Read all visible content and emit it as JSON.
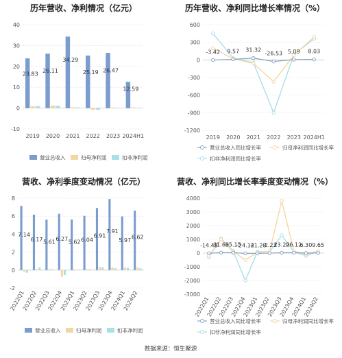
{
  "source": "数据来源：恒生聚源",
  "colors": {
    "revenue": "#7b9ccf",
    "parent_profit": "#f3d7a3",
    "deducted_profit": "#a9e0e6",
    "grid": "#dddddd",
    "axis": "#cccccc"
  },
  "chart_data": [
    {
      "type": "bar",
      "title": "历年营收、净利情况（亿元）",
      "categories": [
        "2019",
        "2020",
        "2021",
        "2022",
        "2023",
        "2024H1"
      ],
      "ylim": [
        -10,
        40
      ],
      "yticks": [
        -10,
        0,
        10,
        20,
        30,
        40
      ],
      "legend_position": "bottom",
      "series": [
        {
          "name": "营业总收入",
          "values": [
            23.83,
            26.11,
            34.29,
            25.19,
            26.47,
            12.59
          ],
          "labels": [
            "23.83",
            "26.11",
            "34.29",
            "25.19",
            "26.47",
            "12.59"
          ]
        },
        {
          "name": "归母净利润",
          "values": [
            0.9,
            1.2,
            0.4,
            -0.8,
            0.3,
            0.3
          ]
        },
        {
          "name": "扣非净利润",
          "values": [
            0.9,
            1.1,
            0.3,
            -0.8,
            0.2,
            0.2
          ]
        }
      ]
    },
    {
      "type": "line",
      "title": "历年营收、净利同比增长率情况（%）",
      "categories": [
        "2019",
        "2020",
        "2021",
        "2022",
        "2023",
        "2024H1"
      ],
      "ylim": [
        -1200,
        600
      ],
      "yticks": [
        -1200,
        -900,
        -600,
        -300,
        0,
        300,
        600
      ],
      "legend_position": "bottom",
      "series": [
        {
          "name": "营业总收入同比增长率",
          "values": [
            -3.42,
            9.57,
            31.32,
            -26.53,
            5.09,
            8.03
          ],
          "labels": [
            "-3.42",
            "9.57",
            "31.32",
            "-26.53",
            "5.09",
            "8.03"
          ]
        },
        {
          "name": "归母净利润同比增长率",
          "values": [
            200,
            20,
            -60,
            -370,
            80,
            390
          ]
        },
        {
          "name": "扣非净利润同比增长率",
          "values": [
            450,
            30,
            -50,
            -900,
            90,
            360
          ]
        }
      ]
    },
    {
      "type": "bar",
      "title": "营收、净利季度变动情况（亿元）",
      "categories": [
        "2022Q1",
        "2022Q2",
        "2022Q3",
        "2022Q4",
        "2023Q1",
        "2023Q2",
        "2023Q3",
        "2023Q4",
        "2024Q1",
        "2024Q2"
      ],
      "ylim": [
        -2,
        8
      ],
      "yticks": [
        -2,
        0,
        2,
        4,
        6,
        8
      ],
      "legend_position": "bottom",
      "series": [
        {
          "name": "营业总收入",
          "values": [
            7.14,
            6.17,
            5.61,
            6.27,
            5.62,
            6.04,
            6.91,
            7.91,
            5.97,
            6.62
          ],
          "labels": [
            "7.14",
            "6.17",
            "5.61",
            "6.27",
            "5.62",
            "6.04",
            "6.91",
            "7.91",
            "5.97",
            "6.62"
          ]
        },
        {
          "name": "归母净利润",
          "values": [
            -0.2,
            0.1,
            0.1,
            -0.75,
            0.1,
            0.1,
            0.35,
            0.3,
            0.3,
            0.3
          ]
        },
        {
          "name": "扣非净利润",
          "values": [
            -0.3,
            0.3,
            0.1,
            -0.55,
            0.05,
            0.1,
            0.3,
            0.2,
            0.25,
            0.2
          ]
        }
      ]
    },
    {
      "type": "line",
      "title": "营收、净利同比增长率季度变动情况（%）",
      "categories": [
        "2022Q1",
        "2022Q2",
        "2022Q3",
        "2022Q4",
        "2023Q1",
        "2023Q2",
        "2023Q3",
        "2023Q4",
        "2024Q1",
        "2024Q2"
      ],
      "ylim": [
        -3000,
        4000
      ],
      "yticks": [
        -3000,
        -2000,
        -1000,
        0,
        1000,
        2000,
        3000,
        4000
      ],
      "legend_position": "bottom",
      "series": [
        {
          "name": "营业总收入同比增长率",
          "values": [
            -14.48,
            31.6,
            35.15,
            -24.14,
            -21.28,
            -2.23,
            23.2,
            26.12,
            6.3,
            9.65
          ],
          "labels": [
            "-14.48",
            "31.60",
            "35.15",
            "-24.14",
            "-21.28",
            "-2.23",
            "23.20",
            "26.12",
            "6.30",
            "9.65"
          ]
        },
        {
          "name": "归母净利润同比增长率",
          "values": [
            -200,
            1000,
            100,
            -500,
            50,
            100,
            3800,
            150,
            -100,
            150
          ]
        },
        {
          "name": "扣非净利润同比增长率",
          "values": [
            -300,
            1050,
            150,
            -2000,
            100,
            100,
            1300,
            100,
            -200,
            100
          ]
        }
      ]
    }
  ]
}
